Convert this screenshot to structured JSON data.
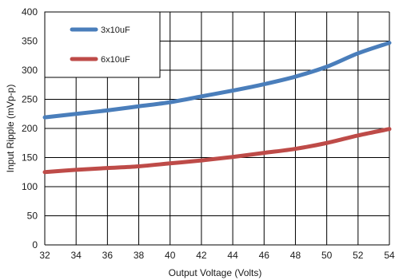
{
  "chart_data": {
    "type": "line",
    "xlabel": "Output Voltage (Volts)",
    "ylabel": "Input Ripple (mVp-p)",
    "xlim": [
      32,
      54
    ],
    "ylim": [
      0,
      400
    ],
    "x_ticks": [
      32,
      34,
      36,
      38,
      40,
      42,
      44,
      46,
      48,
      50,
      52,
      54
    ],
    "y_ticks": [
      0,
      50,
      100,
      150,
      200,
      250,
      300,
      350,
      400
    ],
    "grid": true,
    "legend_position": "top-left",
    "x": [
      32,
      34,
      36,
      38,
      40,
      42,
      44,
      46,
      48,
      50,
      52,
      54
    ],
    "series": [
      {
        "name": "3x10uF",
        "color": "#4a7ebb",
        "values": [
          219,
          225,
          231,
          238,
          245,
          255,
          265,
          276,
          289,
          306,
          329,
          347
        ]
      },
      {
        "name": "6x10uF",
        "color": "#be4b48",
        "values": [
          125,
          129,
          132,
          135,
          140,
          145,
          151,
          158,
          165,
          175,
          188,
          199
        ]
      }
    ]
  }
}
